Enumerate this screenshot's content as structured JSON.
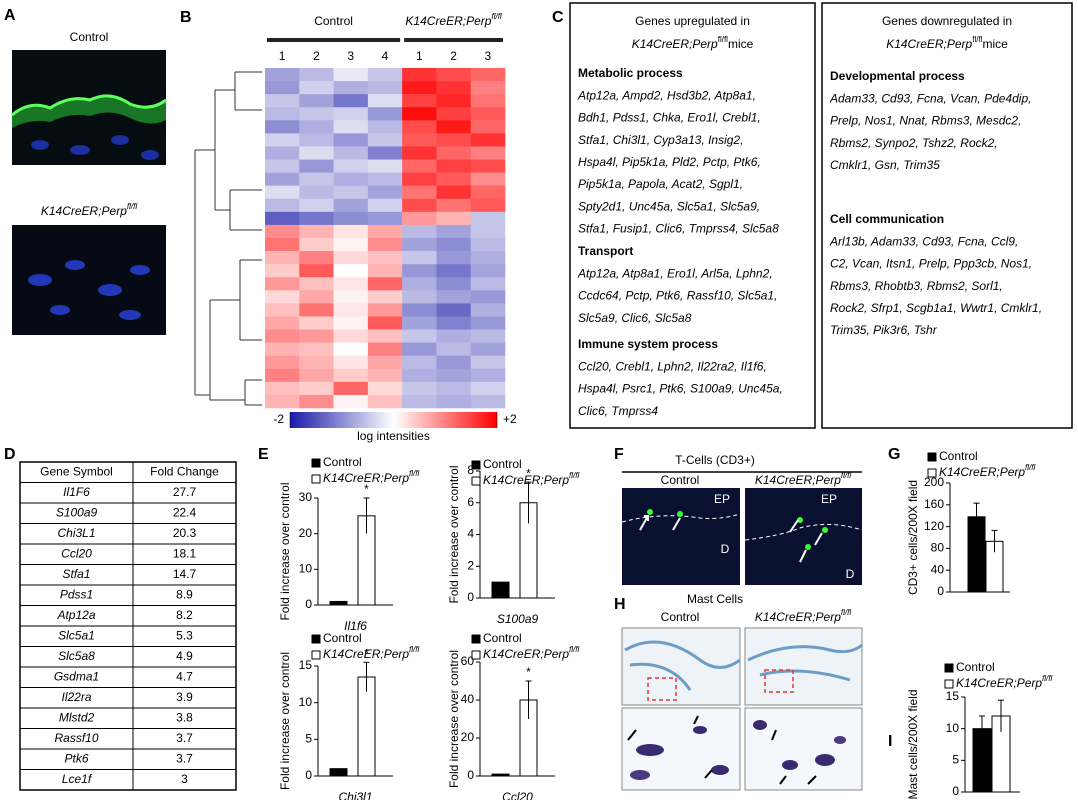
{
  "letters": [
    "A",
    "B",
    "C",
    "D",
    "E",
    "F",
    "G",
    "H",
    "I"
  ],
  "control": "Control",
  "genotype": {
    "name": "K14CreER;Perp",
    "superscript": "fl/fl"
  },
  "mice": "mice",
  "panel_c": {
    "columns": [
      {
        "header": "Genes upregulated in",
        "sections": [
          {
            "title": "Metabolic process",
            "lines": [
              "Atp12a, Ampd2, Hsd3b2, Atp8a1,",
              "Bdh1, Pdss1, Chka, Ero1l, Crebl1,",
              "Stfa1, Chi3l1, Cyp3a13, Insig2,",
              "Hspa4l, Pip5k1a, Pld2, Pctp, Ptk6,",
              "Pip5k1a, Papola, Acat2, Sgpl1,",
              "Spty2d1, Unc45a, Slc5a1, Slc5a9,",
              "Stfa1, Fusip1, Clic6, Tmprss4, Slc5a8"
            ]
          },
          {
            "title": "Transport",
            "lines": [
              "Atp12a, Atp8a1, Ero1l, Arl5a, Lphn2,",
              "Ccdc64, Pctp, Ptk6, Rassf10, Slc5a1,",
              "Slc5a9, Clic6, Slc5a8"
            ]
          },
          {
            "title": "Immune system process",
            "lines": [
              "Ccl20, Crebl1, Lphn2, Il22ra2, Il1f6,",
              "Hspa4l, Psrc1, Ptk6, S100a9, Unc45a,",
              "Clic6, Tmprss4"
            ]
          }
        ]
      },
      {
        "header": "Genes downregulated in",
        "sections": [
          {
            "title": "Developmental process",
            "lines": [
              "Adam33, Cd93, Fcna, Vcan, Pde4dip,",
              "Prelp, Nos1, Nnat, Rbms3, Mesdc2,",
              "Rbms2, Synpo2, Tshz2, Rock2,",
              "Cmklr1, Gsn, Trim35"
            ]
          },
          {
            "title": "Cell communication",
            "lines": [
              "Arl13b, Adam33, Cd93, Fcna, Ccl9,",
              "C2, Vcan, Itsn1, Prelp, Ppp3cb, Nos1,",
              "Rbms3, Rhobtb3, Rbms2, Sorl1,",
              "Rock2, Sfrp1, Scgb1a1, Wwtr1, Cmklr1,",
              "Trim35, Pik3r6, Tshr"
            ]
          }
        ]
      }
    ]
  },
  "table": {
    "header": [
      "Gene Symbol",
      "Fold Change"
    ],
    "rows": [
      [
        "Il1F6",
        27.7
      ],
      [
        "S100a9",
        22.4
      ],
      [
        "Chi3L1",
        20.3
      ],
      [
        "Ccl20",
        18.1
      ],
      [
        "Stfa1",
        14.7
      ],
      [
        "Pdss1",
        8.9
      ],
      [
        "Atp12a",
        8.2
      ],
      [
        "Slc5a1",
        5.3
      ],
      [
        "Slc5a8",
        4.9
      ],
      [
        "Gsdma1",
        4.7
      ],
      [
        "Il22ra",
        3.9
      ],
      [
        "Mlstd2",
        3.8
      ],
      [
        "Rassf10",
        3.7
      ],
      [
        "Ptk6",
        3.7
      ],
      [
        "Lce1f",
        3
      ]
    ]
  },
  "panel_f": {
    "title": "T-Cells (CD3+)",
    "regions": [
      "EP",
      "D"
    ]
  },
  "panel_h": {
    "title": "Mast Cells"
  },
  "chart_data": [
    {
      "type": "heatmap",
      "x_groups": [
        {
          "name": "Control",
          "categories": [
            "1",
            "2",
            "3",
            "4"
          ]
        },
        {
          "name": "K14CreER;Perp",
          "name_superscript": "fl/fl",
          "categories": [
            "1",
            "2",
            "3"
          ]
        }
      ],
      "values": [
        [
          -0.8,
          -0.6,
          -0.2,
          -0.5,
          1.6,
          1.4,
          1.2
        ],
        [
          -0.9,
          -0.4,
          -0.7,
          -0.6,
          1.8,
          1.6,
          1.0
        ],
        [
          -0.5,
          -0.8,
          -1.2,
          -0.3,
          1.5,
          1.7,
          1.1
        ],
        [
          -0.6,
          -0.5,
          -0.4,
          -0.9,
          1.9,
          1.5,
          1.3
        ],
        [
          -1.0,
          -0.7,
          -0.3,
          -0.6,
          1.4,
          1.8,
          1.2
        ],
        [
          -0.4,
          -0.6,
          -0.9,
          -0.5,
          1.3,
          1.4,
          1.6
        ],
        [
          -0.7,
          -0.3,
          -0.6,
          -1.1,
          1.6,
          1.2,
          1.0
        ],
        [
          -0.5,
          -0.9,
          -0.4,
          -0.3,
          1.2,
          1.5,
          1.4
        ],
        [
          -0.8,
          -0.5,
          -0.7,
          -0.6,
          1.5,
          1.3,
          0.9
        ],
        [
          -0.3,
          -0.6,
          -0.5,
          -0.8,
          1.1,
          1.6,
          1.2
        ],
        [
          -0.6,
          -0.4,
          -0.8,
          -0.4,
          1.4,
          1.1,
          1.3
        ],
        [
          -1.4,
          -1.2,
          -1.0,
          -0.9,
          0.8,
          0.6,
          -0.5
        ],
        [
          0.9,
          0.6,
          0.2,
          0.7,
          -0.6,
          -0.8,
          -0.5
        ],
        [
          1.1,
          0.4,
          0.1,
          0.9,
          -0.8,
          -1.0,
          -0.6
        ],
        [
          0.6,
          1.0,
          0.3,
          0.5,
          -0.5,
          -0.9,
          -0.7
        ],
        [
          0.4,
          1.3,
          0.0,
          0.6,
          -0.9,
          -1.2,
          -0.8
        ],
        [
          0.8,
          0.5,
          0.2,
          1.2,
          -0.7,
          -1.0,
          -0.6
        ],
        [
          0.3,
          0.7,
          0.1,
          0.4,
          -0.6,
          -0.8,
          -0.9
        ],
        [
          0.5,
          1.1,
          0.2,
          0.8,
          -1.0,
          -1.3,
          -0.7
        ],
        [
          0.7,
          0.4,
          0.1,
          1.3,
          -0.8,
          -1.1,
          -0.9
        ],
        [
          0.9,
          0.8,
          0.3,
          0.5,
          -0.5,
          -0.7,
          -0.6
        ],
        [
          0.6,
          0.5,
          0.0,
          1.0,
          -0.9,
          -0.6,
          -0.8
        ],
        [
          0.8,
          0.6,
          0.2,
          0.7,
          -0.6,
          -0.9,
          -0.5
        ],
        [
          1.0,
          0.7,
          0.4,
          0.6,
          -0.7,
          -0.8,
          -0.7
        ],
        [
          0.5,
          0.4,
          1.2,
          0.3,
          -0.5,
          -0.6,
          -0.4
        ],
        [
          0.6,
          0.9,
          0.1,
          0.5,
          -0.6,
          -0.7,
          -0.6
        ]
      ],
      "zlim": [
        -2,
        2
      ],
      "zticks": [
        -2,
        {
          "value": 2,
          "label": "+2"
        }
      ],
      "colors": [
        "#1a1aa8",
        "#ffffff",
        "#ff0000"
      ],
      "colorbar_label": "log intensities"
    },
    {
      "type": "bar",
      "y_label": "Fold increase over control",
      "categories": [
        "Il1f6"
      ],
      "series": [
        {
          "name": "Control",
          "color": "#000000",
          "values": [
            1
          ]
        },
        {
          "name": "K14CreER;Perp",
          "name_superscript": "fl/fl",
          "color": "#ffffff",
          "values": [
            25
          ],
          "errors": [
            5
          ]
        }
      ],
      "ylim": [
        0,
        30
      ],
      "yticks": [
        0,
        10,
        20,
        30
      ],
      "annotations": [
        "*"
      ]
    },
    {
      "type": "bar",
      "y_label": "Fold increase over control",
      "categories": [
        "S100a9"
      ],
      "series": [
        {
          "name": "Control",
          "color": "#000000",
          "values": [
            1
          ]
        },
        {
          "name": "K14CreER;Perp",
          "name_superscript": "fl/fl",
          "color": "#ffffff",
          "values": [
            6
          ],
          "errors": [
            1.3
          ]
        }
      ],
      "ylim": [
        0,
        8
      ],
      "yticks": [
        0,
        2,
        4,
        6,
        8
      ],
      "annotations": [
        "*"
      ]
    },
    {
      "type": "bar",
      "y_label": "Fold increase over control",
      "categories": [
        "Chi3l1"
      ],
      "series": [
        {
          "name": "Control",
          "color": "#000000",
          "values": [
            1
          ]
        },
        {
          "name": "K14CreER;Perp",
          "name_superscript": "fl/fl",
          "color": "#ffffff",
          "values": [
            13.5
          ],
          "errors": [
            2
          ]
        }
      ],
      "ylim": [
        0,
        15
      ],
      "yticks": [
        0,
        5,
        10,
        15
      ],
      "annotations": [
        "*"
      ]
    },
    {
      "type": "bar",
      "y_label": "Fold increase over control",
      "categories": [
        "Ccl20"
      ],
      "series": [
        {
          "name": "Control",
          "color": "#000000",
          "values": [
            1
          ]
        },
        {
          "name": "K14CreER;Perp",
          "name_superscript": "fl/fl",
          "color": "#ffffff",
          "values": [
            40
          ],
          "errors": [
            10
          ]
        }
      ],
      "ylim": [
        0,
        60
      ],
      "yticks": [
        0,
        20,
        40,
        60
      ],
      "annotations": [
        "*"
      ]
    },
    {
      "type": "bar",
      "y_label": "CD3+ cells/200X field",
      "categories": [
        null
      ],
      "series": [
        {
          "name": "Control",
          "color": "#000000",
          "values": [
            138
          ],
          "errors": [
            25
          ]
        },
        {
          "name": "K14CreER;Perp",
          "name_superscript": "fl/fl",
          "color": "#ffffff",
          "values": [
            93
          ],
          "errors": [
            20
          ]
        }
      ],
      "ylim": [
        0,
        200
      ],
      "yticks": [
        0,
        40,
        80,
        120,
        160,
        200
      ]
    },
    {
      "type": "bar",
      "y_label": "Mast cells/200X field",
      "categories": [
        null
      ],
      "series": [
        {
          "name": "Control",
          "color": "#000000",
          "values": [
            10
          ],
          "errors": [
            2
          ]
        },
        {
          "name": "K14CreER;Perp",
          "name_superscript": "fl/fl",
          "color": "#ffffff",
          "values": [
            12
          ],
          "errors": [
            2.5
          ]
        }
      ],
      "ylim": [
        0,
        15
      ],
      "yticks": [
        0,
        5,
        10,
        15
      ]
    }
  ]
}
